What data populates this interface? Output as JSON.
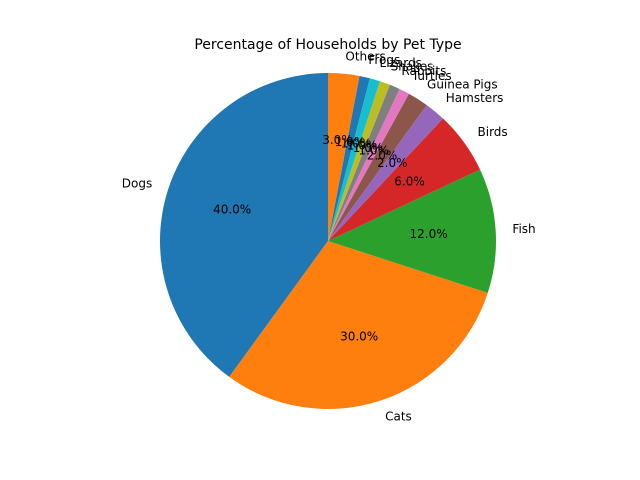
{
  "chart_data": {
    "type": "pie",
    "title": "Percentage of Households by Pet Type",
    "categories": [
      "Dogs",
      "Cats",
      "Fish",
      "Birds",
      "Hamsters",
      "Guinea Pigs",
      "Turtles",
      "Rabbits",
      "Snakes",
      "Lizards",
      "Frogs",
      "Others"
    ],
    "values": [
      40.0,
      30.0,
      12.0,
      6.0,
      2.0,
      2.0,
      1.0,
      1.0,
      1.0,
      1.0,
      1.0,
      3.0
    ],
    "value_labels": [
      "40.0%",
      "30.0%",
      "12.0%",
      "6.0%",
      "2.0%",
      "2.0%",
      "1.0%",
      "1.0%",
      "1.0%",
      "1.0%",
      "1.0%",
      "3.0%"
    ],
    "colors": [
      "#1f77b4",
      "#ff7f0e",
      "#2ca02c",
      "#d62728",
      "#9467bd",
      "#8c564b",
      "#e377c2",
      "#7f7f7f",
      "#bcbd22",
      "#17becf",
      "#1f77b4",
      "#ff7f0e"
    ],
    "start_angle_deg": 90,
    "direction": "counterclockwise",
    "legend": "none"
  }
}
